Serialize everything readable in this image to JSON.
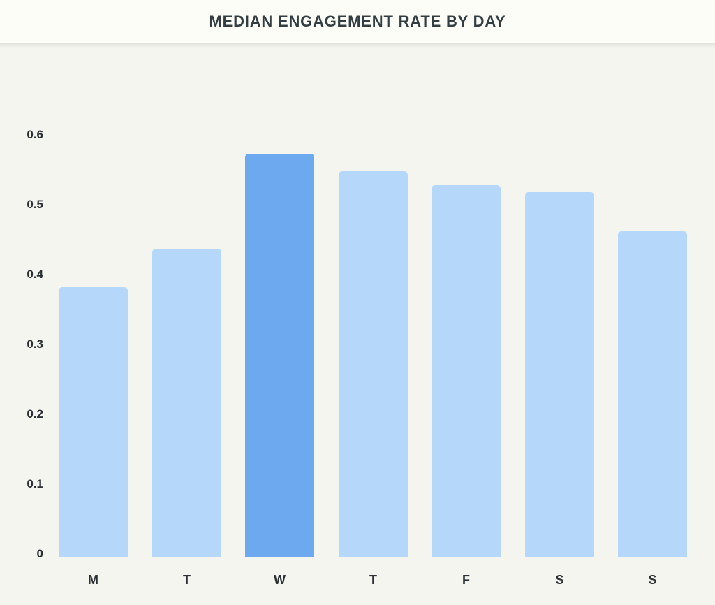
{
  "header": {
    "title": "MEDIAN ENGAGEMENT RATE BY DAY"
  },
  "colors": {
    "header_bg": "#fdfdf7",
    "chart_bg": "#f5f5ef",
    "bar": "#b5d7fa",
    "bar_highlight": "#6ca9ee",
    "title_text": "#323e42",
    "axis_text": "#2b3134"
  },
  "chart_data": {
    "type": "bar",
    "title": "MEDIAN ENGAGEMENT RATE BY DAY",
    "categories": [
      "M",
      "T",
      "W",
      "T",
      "F",
      "S",
      "S"
    ],
    "values": [
      0.385,
      0.44,
      0.575,
      0.55,
      0.53,
      0.52,
      0.465
    ],
    "highlighted_category_index": 2,
    "xlabel": "",
    "ylabel": "",
    "ylim": [
      0,
      0.62
    ],
    "yticks": [
      0,
      0.1,
      0.2,
      0.3,
      0.4,
      0.5,
      0.6
    ],
    "ytick_labels": [
      "0",
      "0.1",
      "0.2",
      "0.3",
      "0.4",
      "0.5",
      "0.6"
    ],
    "grid": false,
    "legend": "none"
  }
}
